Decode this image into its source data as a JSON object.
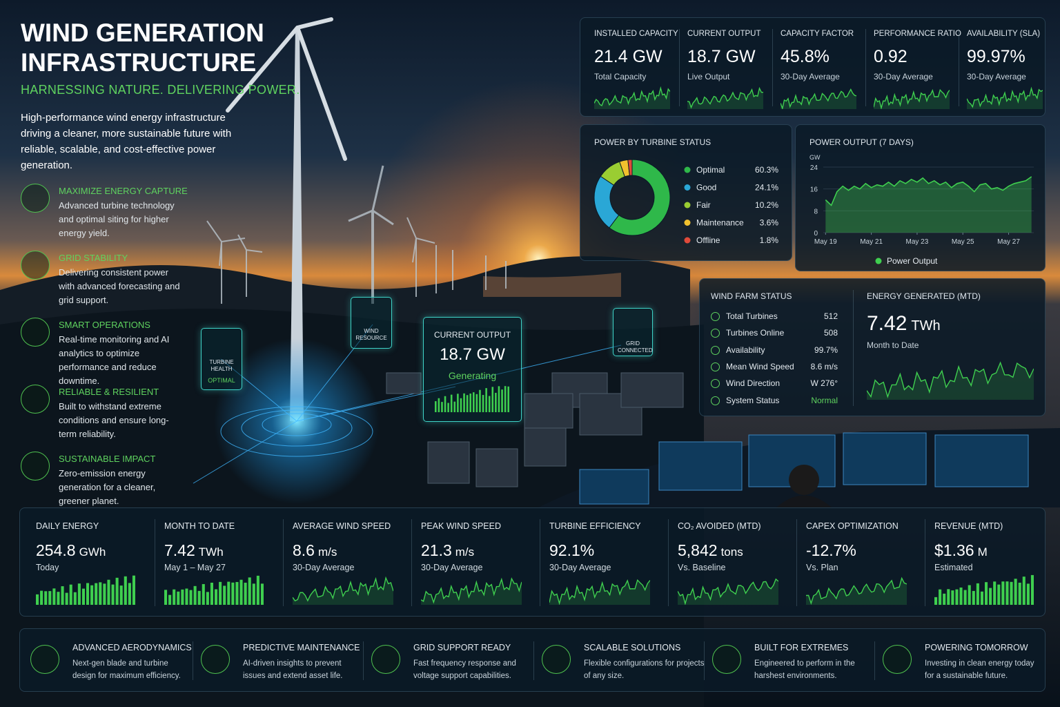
{
  "header": {
    "title": "WIND GENERATION INFRASTRUCTURE",
    "subtitle": "HARNESSING NATURE. DELIVERING POWER.",
    "description": "High-performance wind energy infrastructure driving a cleaner, more sustainable future with reliable, scalable, and cost-effective power generation."
  },
  "features": [
    {
      "title": "MAXIMIZE ENERGY CAPTURE",
      "text": "Advanced turbine technology and optimal siting for higher energy yield."
    },
    {
      "title": "GRID STABILITY",
      "text": "Delivering consistent power with advanced forecasting and grid support."
    },
    {
      "title": "SMART OPERATIONS",
      "text": "Real-time monitoring and AI analytics to optimize performance and reduce downtime."
    },
    {
      "title": "RELIABLE & RESILIENT",
      "text": "Built to withstand extreme conditions and ensure long-term reliability."
    },
    {
      "title": "SUSTAINABLE IMPACT",
      "text": "Zero-emission energy generation for a cleaner, greener planet."
    }
  ],
  "kpis": [
    {
      "label": "INSTALLED CAPACITY",
      "value": "21.4 GW",
      "sub": "Total Capacity"
    },
    {
      "label": "CURRENT OUTPUT",
      "value": "18.7 GW",
      "sub": "Live Output"
    },
    {
      "label": "CAPACITY FACTOR",
      "value": "45.8%",
      "sub": "30-Day Average"
    },
    {
      "label": "PERFORMANCE RATIO",
      "value": "0.92",
      "sub": "30-Day Average"
    },
    {
      "label": "AVAILABILITY (SLA)",
      "value": "99.97%",
      "sub": "30-Day Average"
    }
  ],
  "chart_data": [
    {
      "type": "donut",
      "title": "POWER BY TURBINE STATUS",
      "categories": [
        "Optimal",
        "Good",
        "Fair",
        "Maintenance",
        "Offline"
      ],
      "values": [
        60.3,
        24.1,
        10.2,
        3.6,
        1.8
      ],
      "value_labels": [
        "60.3%",
        "24.1%",
        "10.2%",
        "3.6%",
        "1.8%"
      ],
      "colors": [
        "#2fb84a",
        "#2aa7d6",
        "#9acd32",
        "#f2c12e",
        "#e04a3a"
      ]
    },
    {
      "type": "line",
      "title": "POWER OUTPUT (7 DAYS)",
      "y_label": "GW",
      "x": [
        19,
        19.25,
        19.5,
        19.75,
        20,
        20.25,
        20.5,
        20.75,
        21,
        21.25,
        21.5,
        21.75,
        22,
        22.25,
        22.5,
        22.75,
        23,
        23.25,
        23.5,
        23.75,
        24,
        24.25,
        24.5,
        24.75,
        25,
        25.25,
        25.5,
        25.75,
        26,
        26.25,
        26.5,
        26.75,
        27,
        27.25,
        27.5,
        27.75,
        28
      ],
      "series": [
        {
          "name": "Power Output",
          "color": "#3fcf4f",
          "values": [
            12,
            10,
            15,
            17,
            15.5,
            17,
            16,
            18,
            16.5,
            17.5,
            17,
            18.5,
            17,
            19,
            18,
            19.5,
            18.5,
            20,
            18,
            19,
            17.5,
            18.5,
            16.5,
            18,
            18.5,
            17,
            15,
            17.5,
            18,
            16,
            16.5,
            15.5,
            17,
            18,
            18.5,
            19,
            20.5
          ]
        }
      ],
      "xlim": [
        18.9,
        28.1
      ],
      "xticks": [
        {
          "value": 19,
          "label": "May 19"
        },
        {
          "value": 21,
          "label": "May 21"
        },
        {
          "value": 23,
          "label": "May 23"
        },
        {
          "value": 25,
          "label": "May 25"
        },
        {
          "value": 27,
          "label": "May 27"
        }
      ],
      "ylim": [
        0,
        24
      ],
      "yticks": [
        0,
        8,
        16,
        24
      ],
      "grid": true,
      "legend": "bottom"
    }
  ],
  "wind_farm_status": {
    "title": "WIND FARM STATUS",
    "rows": [
      {
        "label": "Total Turbines",
        "value": "512"
      },
      {
        "label": "Turbines Online",
        "value": "508"
      },
      {
        "label": "Availability",
        "value": "99.7%"
      },
      {
        "label": "Mean Wind Speed",
        "value": "8.6 m/s"
      },
      {
        "label": "Wind Direction",
        "value": "W 276°"
      },
      {
        "label": "System Status",
        "value": "Normal"
      }
    ]
  },
  "energy_generated": {
    "title": "ENERGY GENERATED (MTD)",
    "value": "7.42",
    "unit": "TWh",
    "sub": "Month to Date"
  },
  "overlays": {
    "turbine_health": {
      "label": "TURBINE HEALTH",
      "status": "OPTIMAL"
    },
    "wind_resource": "WIND RESOURCE",
    "grid": "GRID CONNECTED",
    "current_output": {
      "title": "CURRENT OUTPUT",
      "value": "18.7 GW",
      "status": "Generating"
    }
  },
  "metrics": [
    {
      "label": "DAILY ENERGY",
      "value": "254.8",
      "unit": "GWh",
      "sub": "Today"
    },
    {
      "label": "MONTH TO DATE",
      "value": "7.42",
      "unit": "TWh",
      "sub": "May 1 – May 27"
    },
    {
      "label": "AVERAGE WIND SPEED",
      "value": "8.6",
      "unit": "m/s",
      "sub": "30-Day Average"
    },
    {
      "label": "PEAK WIND SPEED",
      "value": "21.3",
      "unit": "m/s",
      "sub": "30-Day Average"
    },
    {
      "label": "TURBINE EFFICIENCY",
      "value": "92.1%",
      "sub": "30-Day Average"
    },
    {
      "label": "CO₂ AVOIDED  (MTD)",
      "value": "5,842",
      "unit": "tons",
      "sub": "Vs. Baseline"
    },
    {
      "label": "CAPEX OPTIMIZATION",
      "value": "-12.7%",
      "sub": "Vs. Plan"
    },
    {
      "label": "REVENUE  (MTD)",
      "value": "$1.36",
      "unit": "M",
      "sub": "Estimated"
    }
  ],
  "footer": [
    {
      "title": "ADVANCED AERODYNAMICS",
      "text": "Next-gen blade and turbine design for maximum efficiency."
    },
    {
      "title": "PREDICTIVE MAINTENANCE",
      "text": "AI-driven insights to prevent issues and extend asset life."
    },
    {
      "title": "GRID SUPPORT READY",
      "text": "Fast frequency response and voltage support capabilities."
    },
    {
      "title": "SCALABLE SOLUTIONS",
      "text": "Flexible configurations for projects of any size."
    },
    {
      "title": "BUILT FOR EXTREMES",
      "text": "Engineered to perform in the harshest environments."
    },
    {
      "title": "POWERING TOMORROW",
      "text": "Investing in clean energy today for a sustainable future."
    }
  ]
}
